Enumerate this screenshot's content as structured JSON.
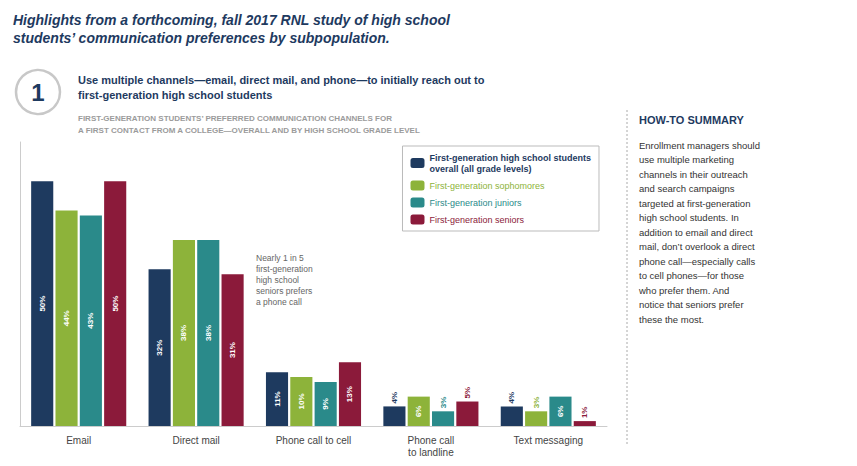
{
  "chart_data": {
    "type": "bar",
    "title": "Highlights from a forthcoming, fall 2017 RNL study of high school\nstudents’ communication preferences by subpopulation.",
    "subtitle": [
      "Use multiple channels—email, direct mail, and phone—to initially reach out to\nfirst-generation high school students",
      "FIRST-GENERATION STUDENTS’ PREFERRED COMMUNICATION CHANNELS FOR\nA FIRST CONTACT FROM A COLLEGE—OVERALL AND BY HIGH SCHOOL GRADE LEVEL"
    ],
    "annotations": [
      "1",
      "Nearly 1 in 5\nfirst-generation\nhigh school\nseniors prefers\na phone call",
      "HOW-TO SUMMARY",
      "Enrollment managers should\nuse multiple marketing\nchannels in their outreach\nand search campaigns\ntargeted at first-generation\nhigh school students. In\naddition to email and direct\nmail, don’t overlook a direct\nphone call—especially calls\nto cell phones—for those\nwho prefer them. And\nnotice that seniors prefer\nthese the most."
    ],
    "categories": [
      "Email",
      "Direct mail",
      "Phone call to cell",
      "Phone call\nto landline",
      "Text messaging"
    ],
    "series": [
      {
        "name": "First-generation high school students\noverall (all grade levels)",
        "color": "#1e3a5f",
        "values": [
          50,
          32,
          11,
          4,
          4
        ],
        "value_labels": [
          "50%",
          "32%",
          "11%",
          "4%",
          "4%"
        ]
      },
      {
        "name": "First-generation sophomores",
        "color": "#8db33a",
        "values": [
          44,
          38,
          10,
          6,
          3
        ],
        "value_labels": [
          "44%",
          "38%",
          "10%",
          "6%",
          "3%"
        ]
      },
      {
        "name": "First-generation juniors",
        "color": "#2a8a8a",
        "values": [
          43,
          38,
          9,
          3,
          6
        ],
        "value_labels": [
          "43%",
          "38%",
          "9%",
          "3%",
          "6%"
        ]
      },
      {
        "name": "First-generation seniors",
        "color": "#8b1a3a",
        "values": [
          50,
          31,
          13,
          5,
          1
        ],
        "value_labels": [
          "50%",
          "31%",
          "13%",
          "5%",
          "1%"
        ]
      }
    ],
    "ylim": [
      0,
      58
    ],
    "grid": false,
    "tick_labels": "x",
    "legend": "upper right",
    "data_labels": true
  }
}
